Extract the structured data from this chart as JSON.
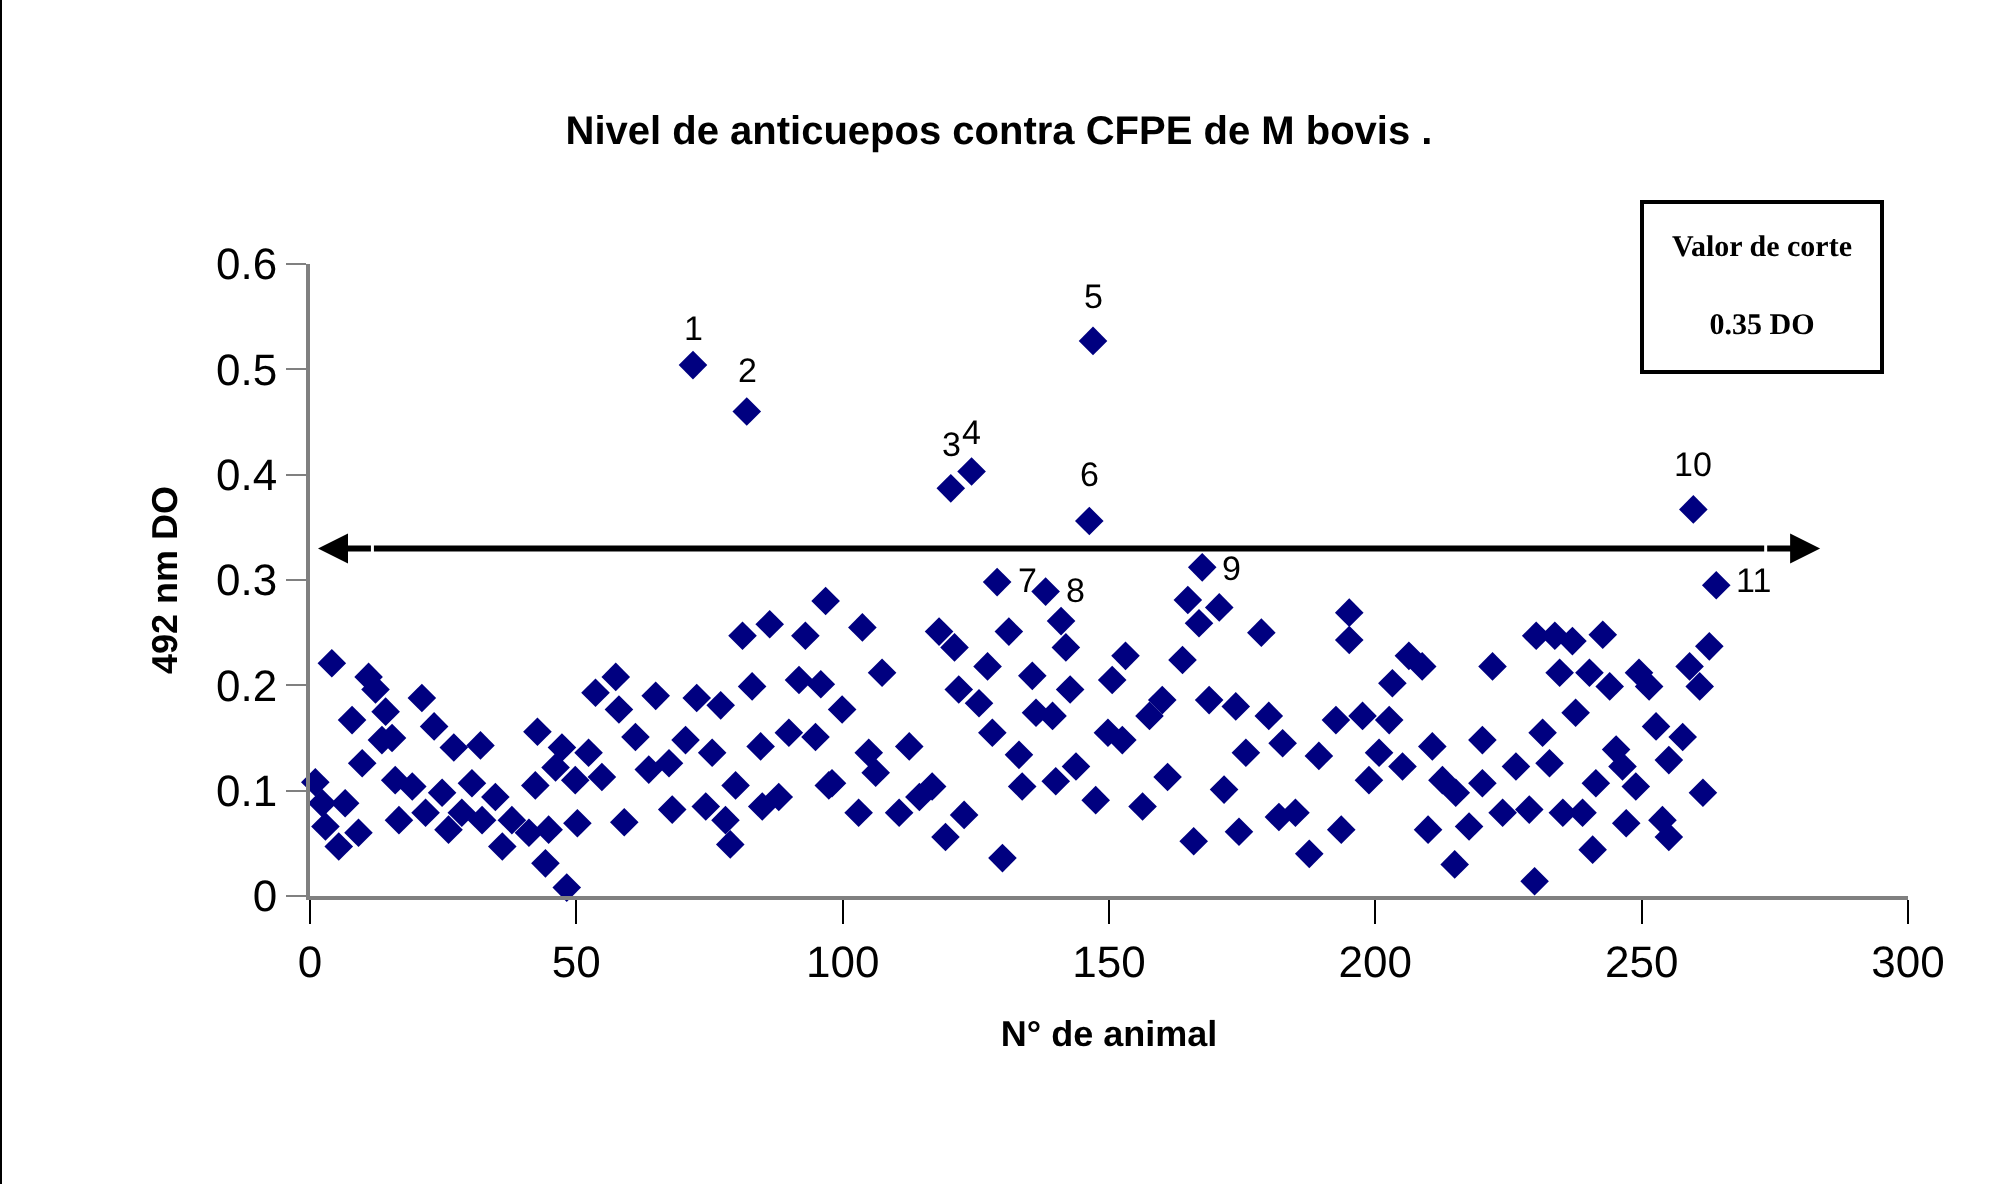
{
  "chart_data": {
    "type": "scatter",
    "title": "Nivel de anticuepos contra CFPE de M bovis .",
    "xlabel": "N° de animal",
    "ylabel": "492 nm DO",
    "xlim": [
      0,
      300
    ],
    "xticks": [
      0,
      50,
      100,
      150,
      200,
      250,
      300
    ],
    "ylim": [
      0,
      0.6
    ],
    "yticks": [
      0,
      0.1,
      0.2,
      0.3,
      0.4,
      0.5,
      0.6
    ],
    "grid": false,
    "marker": "diamond",
    "ref_lines": [
      {
        "axis": "y",
        "value": 0.33,
        "color": "#000000"
      }
    ],
    "annotations": [
      "Valor de corte",
      "0.35 DO",
      {
        "text": "1",
        "x": 71.9,
        "y": 0.5
      },
      {
        "text": "2",
        "x": 82,
        "y": 0.46
      },
      {
        "text": "3",
        "x": 120.3,
        "y": 0.39
      },
      {
        "text": "4",
        "x": 124.2,
        "y": 0.4
      },
      {
        "text": "5",
        "x": 147,
        "y": 0.53
      },
      {
        "text": "6",
        "x": 146.3,
        "y": 0.36
      },
      {
        "text": "7",
        "x": 129,
        "y": 0.3
      },
      {
        "text": "8",
        "x": 138.1,
        "y": 0.29
      },
      {
        "text": "9",
        "x": 167.5,
        "y": 0.31
      },
      {
        "text": "10",
        "x": 259.7,
        "y": 0.37
      },
      {
        "text": "11",
        "x": 264,
        "y": 0.3
      }
    ],
    "series": [
      {
        "color": "#000080",
        "x": [
          1,
          4.1,
          2.3,
          2.9,
          5.4,
          6.6,
          9.1,
          7.9,
          9.8,
          11,
          12.3,
          14.2,
          13.5,
          15.4,
          16,
          19.2,
          16.7,
          21,
          23.3,
          21.7,
          24.8,
          27,
          26,
          30.4,
          32,
          28.5,
          32.3,
          34.8,
          36.1,
          37.9,
          41.1,
          42.7,
          42.3,
          44.8,
          44.2,
          48.2,
          47.3,
          50.2,
          46.1,
          49.8,
          52.3,
          53.6,
          57.4,
          58,
          54.8,
          59,
          61.1,
          64.9,
          63.6,
          67.4,
          68,
          70.5,
          72.6,
          75.5,
          77.1,
          74.3,
          78,
          78.9,
          79.9,
          81.2,
          83,
          86.3,
          84.6,
          84.9,
          88,
          93,
          91.8,
          95.9,
          96.8,
          89.9,
          94.9,
          97.4,
          71.9,
          82,
          103.7,
          99.9,
          98,
          103,
          104.9,
          107.4,
          106.2,
          110.6,
          112.5,
          114.4,
          116.8,
          118.1,
          121,
          119.3,
          122.8,
          121.8,
          125.6,
          127.2,
          128.1,
          129,
          130,
          131.2,
          133.1,
          133.7,
          135.6,
          136.3,
          138.1,
          141,
          141.9,
          139.4,
          142.7,
          140,
          143.8,
          147.5,
          146.3,
          149.8,
          153.1,
          150.6,
          152.5,
          156.3,
          157.6,
          161,
          160,
          163.8,
          164.8,
          166.9,
          167.5,
          170.7,
          165.9,
          168.8,
          173.8,
          171.6,
          174.4,
          175.7,
          178.6,
          180,
          182.6,
          181.9,
          185,
          187.6,
          189.4,
          192.6,
          193.6,
          195.1,
          195.1,
          120.3,
          124.2,
          147,
          197.6,
          202.6,
          200.7,
          205.1,
          206.3,
          208.8,
          203.2,
          198.8,
          210.7,
          209.9,
          212.6,
          215.1,
          214.9,
          217.6,
          220.1,
          220.1,
          222,
          223.9,
          226.4,
          228.9,
          229.9,
          230.2,
          231.4,
          232.7,
          233.7,
          234.6,
          235.2,
          237,
          237.6,
          238.9,
          240.2,
          240.8,
          242.7,
          244,
          241.4,
          245.2,
          247.1,
          246.4,
          249.5,
          251.4,
          248.9,
          252.7,
          253.9,
          255.1,
          257.7,
          255.1,
          259,
          260.9,
          262.7,
          261.5,
          264,
          259.7
        ],
        "values": [
          0.108,
          0.221,
          0.088,
          0.066,
          0.047,
          0.088,
          0.06,
          0.167,
          0.126,
          0.208,
          0.196,
          0.175,
          0.148,
          0.15,
          0.11,
          0.104,
          0.072,
          0.188,
          0.161,
          0.079,
          0.098,
          0.141,
          0.063,
          0.107,
          0.143,
          0.079,
          0.072,
          0.094,
          0.047,
          0.072,
          0.06,
          0.156,
          0.105,
          0.063,
          0.031,
          0.008,
          0.141,
          0.069,
          0.122,
          0.11,
          0.136,
          0.193,
          0.208,
          0.177,
          0.113,
          0.07,
          0.151,
          0.19,
          0.12,
          0.126,
          0.082,
          0.148,
          0.188,
          0.136,
          0.181,
          0.085,
          0.072,
          0.049,
          0.105,
          0.247,
          0.199,
          0.258,
          0.142,
          0.085,
          0.094,
          0.247,
          0.205,
          0.201,
          0.28,
          0.155,
          0.151,
          0.105,
          0.504,
          0.46,
          0.255,
          0.177,
          0.107,
          0.079,
          0.136,
          0.212,
          0.117,
          0.079,
          0.142,
          0.094,
          0.104,
          0.251,
          0.236,
          0.056,
          0.077,
          0.196,
          0.183,
          0.218,
          0.155,
          0.298,
          0.036,
          0.251,
          0.134,
          0.104,
          0.209,
          0.174,
          0.289,
          0.261,
          0.236,
          0.171,
          0.196,
          0.109,
          0.123,
          0.091,
          0.356,
          0.155,
          0.228,
          0.205,
          0.148,
          0.085,
          0.171,
          0.113,
          0.186,
          0.224,
          0.281,
          0.259,
          0.312,
          0.274,
          0.052,
          0.186,
          0.18,
          0.101,
          0.061,
          0.136,
          0.25,
          0.171,
          0.145,
          0.075,
          0.079,
          0.04,
          0.133,
          0.167,
          0.063,
          0.269,
          0.243,
          0.387,
          0.403,
          0.527,
          0.171,
          0.167,
          0.136,
          0.123,
          0.228,
          0.218,
          0.202,
          0.11,
          0.142,
          0.063,
          0.11,
          0.098,
          0.03,
          0.066,
          0.107,
          0.148,
          0.218,
          0.079,
          0.123,
          0.082,
          0.014,
          0.247,
          0.155,
          0.126,
          0.247,
          0.212,
          0.079,
          0.242,
          0.174,
          0.079,
          0.212,
          0.044,
          0.248,
          0.199,
          0.107,
          0.139,
          0.069,
          0.123,
          0.212,
          0.199,
          0.104,
          0.161,
          0.072,
          0.056,
          0.151,
          0.129,
          0.218,
          0.199,
          0.237,
          0.098,
          0.295,
          0.367
        ]
      }
    ]
  }
}
